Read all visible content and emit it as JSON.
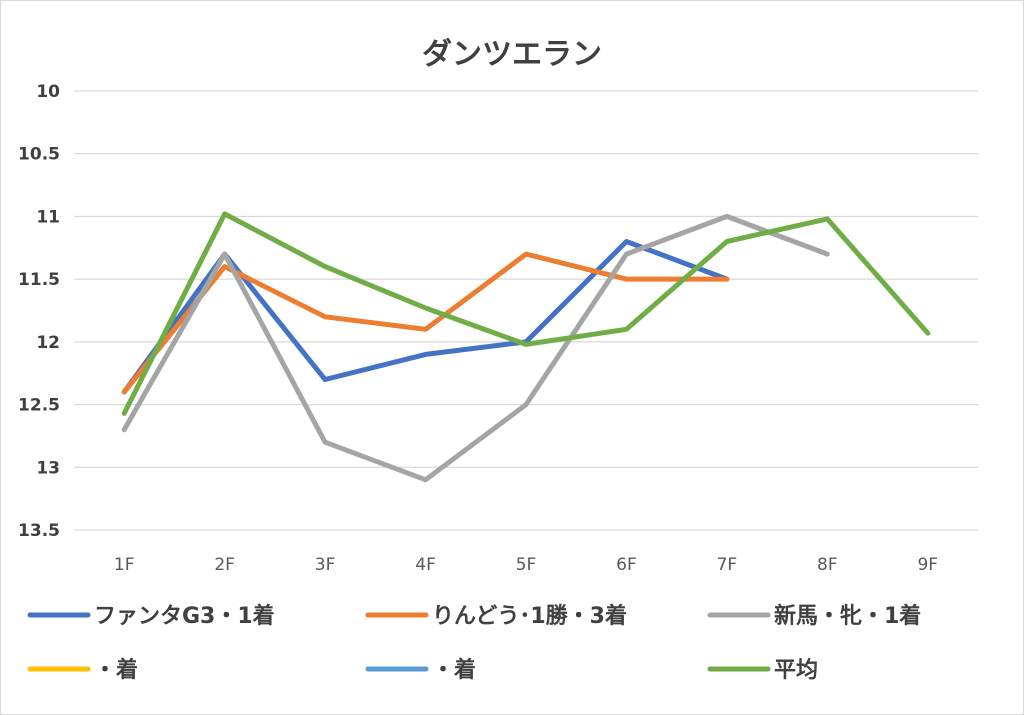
{
  "chart_data": {
    "type": "line",
    "title": "ダンツエラン",
    "categories": [
      "1F",
      "2F",
      "3F",
      "4F",
      "5F",
      "6F",
      "7F",
      "8F",
      "9F"
    ],
    "y_axis": {
      "reversed": true,
      "ylim": [
        10,
        13.5
      ],
      "ticks": [
        "10",
        "10.5",
        "11",
        "11.5",
        "12",
        "12.5",
        "13",
        "13.5"
      ],
      "tick_values": [
        10,
        10.5,
        11,
        11.5,
        12,
        12.5,
        13,
        13.5
      ]
    },
    "grid": true,
    "legend_position": "bottom",
    "series": [
      {
        "name": "ファンタG3・1着",
        "color": "#4472c4",
        "values": [
          12.4,
          11.3,
          12.3,
          12.1,
          12.0,
          11.2,
          11.5,
          null,
          null
        ]
      },
      {
        "name": "りんどう･1勝・3着",
        "color": "#ed7d31",
        "values": [
          12.4,
          11.4,
          11.8,
          11.9,
          11.3,
          11.5,
          11.5,
          null,
          null
        ]
      },
      {
        "name": "新馬・牝・1着",
        "color": "#a5a5a5",
        "values": [
          12.7,
          11.3,
          12.8,
          13.1,
          12.5,
          11.3,
          11.0,
          11.3,
          null
        ]
      },
      {
        "name": "・着",
        "color": "#ffc000",
        "values": [
          null,
          null,
          null,
          null,
          null,
          null,
          null,
          null,
          null
        ]
      },
      {
        "name": "・着",
        "color": "#5b9bd5",
        "values": [
          null,
          null,
          null,
          null,
          null,
          null,
          null,
          null,
          null
        ]
      },
      {
        "name": "平均",
        "color": "#70ad47",
        "values": [
          12.57,
          10.98,
          11.4,
          11.73,
          12.02,
          11.9,
          11.2,
          11.02,
          11.93
        ]
      }
    ]
  }
}
